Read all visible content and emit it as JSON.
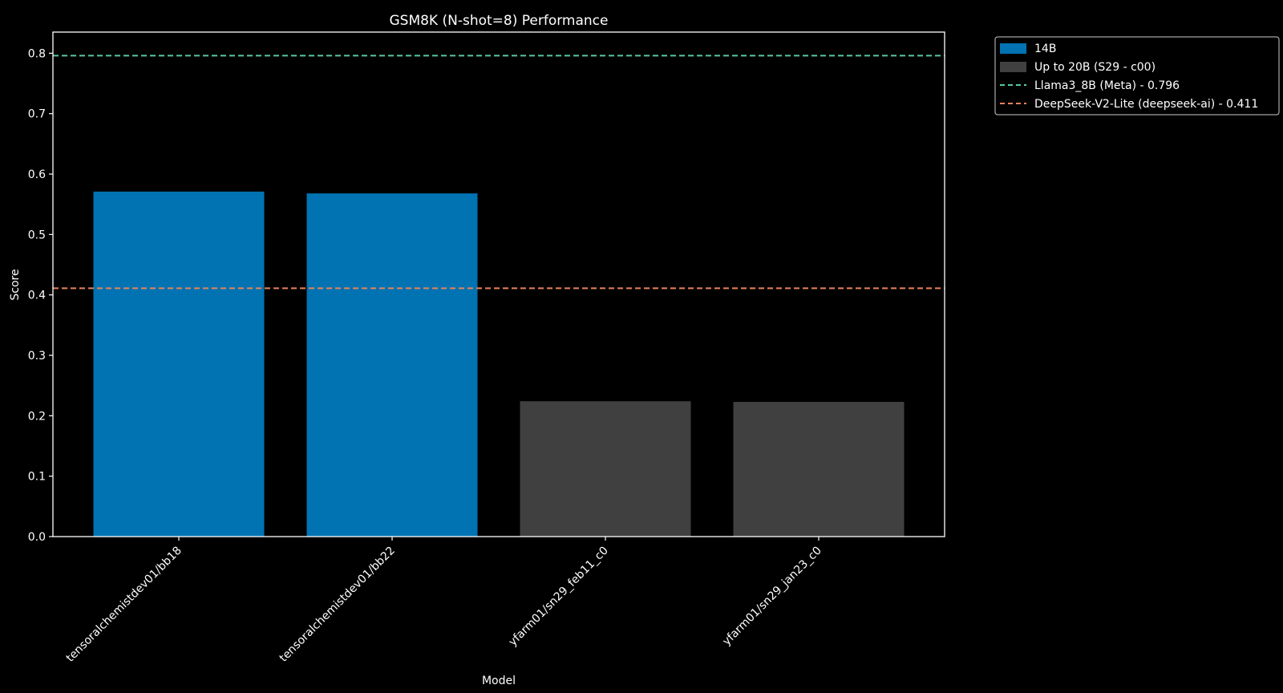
{
  "chart_data": {
    "type": "bar",
    "title": "GSM8K (N-shot=8) Performance",
    "xlabel": "Model",
    "ylabel": "Score",
    "ylim": [
      0,
      0.835
    ],
    "yticks": [
      0.0,
      0.1,
      0.2,
      0.3,
      0.4,
      0.5,
      0.6,
      0.7,
      0.8
    ],
    "grid": false,
    "legend_position": "outside-top-right",
    "categories": [
      "tensoralchemistdev01/bb18",
      "tensoralchemistdev01/bb22",
      "yfarm01/sn29_feb11_c0",
      "yfarm01/sn29_jan23_c0"
    ],
    "values": [
      0.571,
      0.568,
      0.224,
      0.223
    ],
    "bar_groups": [
      "14B",
      "14B",
      "Up to 20B (S29 - c00)",
      "Up to 20B (S29 - c00)"
    ],
    "series": [
      {
        "name": "14B",
        "color": "#0173b2"
      },
      {
        "name": "Up to 20B (S29 - c00)",
        "color": "#404040"
      }
    ],
    "reference_lines": [
      {
        "label": "Llama3_8B (Meta) - 0.796",
        "value": 0.796,
        "color": "#57c9a0",
        "style": "dashed"
      },
      {
        "label": "DeepSeek-V2-Lite (deepseek-ai) - 0.411",
        "value": 0.411,
        "color": "#e8825a",
        "style": "dashed"
      }
    ]
  }
}
